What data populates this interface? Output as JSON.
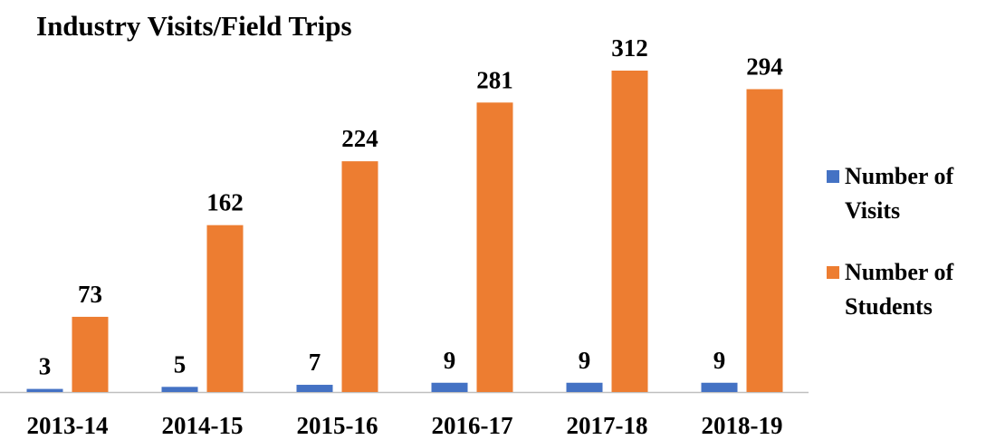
{
  "chart_data": {
    "type": "bar",
    "title": "Industry Visits/Field Trips",
    "categories": [
      "2013-14",
      "2014-15",
      "2015-16",
      "2016-17",
      "2017-18",
      "2018-19"
    ],
    "series": [
      {
        "name": "Number of Visits",
        "color": "#4472c4",
        "values": [
          3,
          5,
          7,
          9,
          9,
          9
        ]
      },
      {
        "name": "Number of Students",
        "color": "#ed7d31",
        "values": [
          73,
          162,
          224,
          281,
          312,
          294
        ]
      }
    ],
    "legend": "right"
  }
}
